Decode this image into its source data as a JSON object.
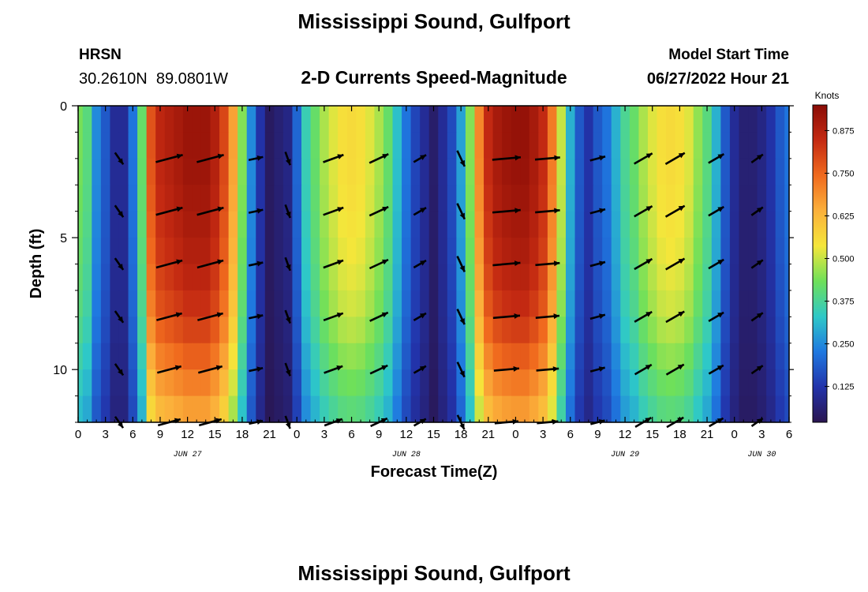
{
  "header": {
    "title": "Mississippi Sound, Gulfport",
    "station_code": "HRSN",
    "coords": "30.2610N  89.0801W",
    "subtitle": "2-D Currents Speed-Magnitude",
    "model_start_label": "Model Start Time",
    "model_start_value": "06/27/2022 Hour 21"
  },
  "footer": {
    "title": "Mississippi Sound, Gulfport"
  },
  "colors": {
    "background": "#ffffff",
    "text": "#000000",
    "arrow": "#000000",
    "colormap": [
      "#2a1550",
      "#2233aa",
      "#1f78e0",
      "#2ec8c8",
      "#6ee05a",
      "#f5e63a",
      "#fbb03b",
      "#f06a1e",
      "#c42a12",
      "#8a0c06"
    ]
  },
  "chart_data": {
    "type": "heatmap",
    "title": "2-D Currents Speed-Magnitude",
    "xlabel": "Forecast Time(Z)",
    "ylabel": "Depth (ft)",
    "x_unit": "hours since JUN 27 00Z",
    "xlim": [
      0,
      78
    ],
    "ylim": [
      0,
      12
    ],
    "y_inverted": true,
    "x_tick_values": [
      0,
      3,
      6,
      9,
      12,
      15,
      18,
      21,
      24,
      27,
      30,
      33,
      36,
      39,
      42,
      45,
      48,
      51,
      54,
      57,
      60,
      63,
      66,
      69,
      72,
      75,
      78
    ],
    "x_tick_labels": [
      "0",
      "3",
      "6",
      "9",
      "12",
      "15",
      "18",
      "21",
      "0",
      "3",
      "6",
      "9",
      "12",
      "15",
      "18",
      "21",
      "0",
      "3",
      "6",
      "9",
      "12",
      "15",
      "18",
      "21",
      "0",
      "3",
      "6"
    ],
    "y_tick_values": [
      0,
      5,
      10
    ],
    "y_tick_labels": [
      "0",
      "5",
      "10"
    ],
    "date_labels": [
      {
        "x": 12,
        "label": "JUN 27"
      },
      {
        "x": 36,
        "label": "JUN 28"
      },
      {
        "x": 60,
        "label": "JUN 29"
      },
      {
        "x": 75,
        "label": "JUN 30"
      }
    ],
    "speed_by_hour": [
      0.44,
      0.4,
      0.25,
      0.18,
      0.1,
      0.1,
      0.22,
      0.42,
      0.78,
      0.86,
      0.88,
      0.9,
      0.92,
      0.92,
      0.92,
      0.88,
      0.8,
      0.66,
      0.45,
      0.25,
      0.12,
      0.04,
      0.06,
      0.08,
      0.2,
      0.35,
      0.42,
      0.48,
      0.52,
      0.55,
      0.56,
      0.55,
      0.52,
      0.48,
      0.42,
      0.32,
      0.22,
      0.15,
      0.1,
      0.05,
      0.1,
      0.16,
      0.28,
      0.45,
      0.7,
      0.85,
      0.9,
      0.92,
      0.93,
      0.93,
      0.9,
      0.85,
      0.72,
      0.5,
      0.3,
      0.18,
      0.12,
      0.18,
      0.22,
      0.3,
      0.38,
      0.42,
      0.48,
      0.52,
      0.55,
      0.56,
      0.55,
      0.52,
      0.46,
      0.4,
      0.3,
      0.18,
      0.1,
      0.06,
      0.06,
      0.08,
      0.12,
      0.18,
      0.22
    ],
    "depth_levels": [
      0,
      2,
      4,
      6,
      8,
      10,
      12
    ],
    "depth_speed_factor": [
      1.0,
      1.0,
      0.98,
      0.95,
      0.9,
      0.8,
      0.7
    ],
    "vector_times": [
      4.5,
      10,
      14.5,
      19.5,
      23,
      28,
      33,
      37.5,
      42,
      47,
      51.5,
      57,
      62,
      65.5,
      70,
      74.5
    ],
    "vector_angles_deg": [
      -55,
      15,
      15,
      12,
      -70,
      20,
      25,
      30,
      -65,
      5,
      5,
      15,
      30,
      30,
      30,
      35
    ],
    "vector_scale": "arrow length proportional to current speed",
    "colorbar": {
      "label": "Knots",
      "min": 0.02,
      "max": 0.95,
      "ticks": [
        0.125,
        0.25,
        0.375,
        0.5,
        0.625,
        0.75,
        0.875
      ],
      "tick_labels": [
        "0.125",
        "0.250",
        "0.375",
        "0.500",
        "0.625",
        "0.750",
        "0.875"
      ]
    }
  }
}
